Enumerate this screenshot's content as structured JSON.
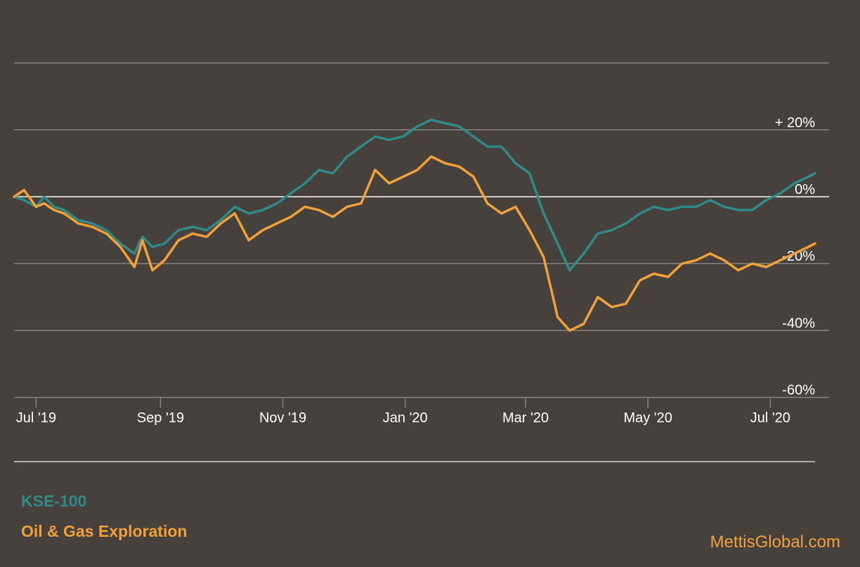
{
  "chart_data": {
    "type": "line",
    "x_axis": {
      "ticks": [
        "Jul '19",
        "Sep '19",
        "Nov '19",
        "Jan '20",
        "Mar '20",
        "May '20",
        "Jul '20"
      ],
      "range": [
        "2019-06-20",
        "2020-07-28"
      ]
    },
    "y_axis": {
      "ticks": [
        "+ 20%",
        "0%",
        "-20%",
        "-40%",
        "-60%"
      ],
      "tick_values": [
        20,
        0,
        -20,
        -40,
        -60
      ],
      "ylim": [
        -60,
        40
      ],
      "position": "right"
    },
    "grid": true,
    "legend": {
      "placement": "bottom-left"
    },
    "series": [
      {
        "name": "KSE-100",
        "color": "#2e8b8a",
        "points": [
          [
            "2019-06-20",
            0
          ],
          [
            "2019-06-25",
            -1
          ],
          [
            "2019-07-01",
            -3
          ],
          [
            "2019-07-05",
            0
          ],
          [
            "2019-07-10",
            -3
          ],
          [
            "2019-07-15",
            -4
          ],
          [
            "2019-07-22",
            -7
          ],
          [
            "2019-07-29",
            -8
          ],
          [
            "2019-08-05",
            -10
          ],
          [
            "2019-08-12",
            -14
          ],
          [
            "2019-08-19",
            -17
          ],
          [
            "2019-08-23",
            -12
          ],
          [
            "2019-08-28",
            -15
          ],
          [
            "2019-09-03",
            -14
          ],
          [
            "2019-09-10",
            -10
          ],
          [
            "2019-09-17",
            -9
          ],
          [
            "2019-09-24",
            -10
          ],
          [
            "2019-10-01",
            -7
          ],
          [
            "2019-10-08",
            -3
          ],
          [
            "2019-10-15",
            -5
          ],
          [
            "2019-10-22",
            -4
          ],
          [
            "2019-10-29",
            -2
          ],
          [
            "2019-11-05",
            1
          ],
          [
            "2019-11-12",
            4
          ],
          [
            "2019-11-19",
            8
          ],
          [
            "2019-11-26",
            7
          ],
          [
            "2019-12-03",
            12
          ],
          [
            "2019-12-10",
            15
          ],
          [
            "2019-12-17",
            18
          ],
          [
            "2019-12-24",
            17
          ],
          [
            "2019-12-31",
            18
          ],
          [
            "2020-01-07",
            21
          ],
          [
            "2020-01-14",
            23
          ],
          [
            "2020-01-21",
            22
          ],
          [
            "2020-01-28",
            21
          ],
          [
            "2020-02-04",
            18
          ],
          [
            "2020-02-11",
            15
          ],
          [
            "2020-02-18",
            15
          ],
          [
            "2020-02-25",
            10
          ],
          [
            "2020-03-03",
            7
          ],
          [
            "2020-03-10",
            -5
          ],
          [
            "2020-03-17",
            -14
          ],
          [
            "2020-03-23",
            -22
          ],
          [
            "2020-03-30",
            -17
          ],
          [
            "2020-04-06",
            -11
          ],
          [
            "2020-04-13",
            -10
          ],
          [
            "2020-04-20",
            -8
          ],
          [
            "2020-04-27",
            -5
          ],
          [
            "2020-05-04",
            -3
          ],
          [
            "2020-05-11",
            -4
          ],
          [
            "2020-05-18",
            -3
          ],
          [
            "2020-05-25",
            -3
          ],
          [
            "2020-06-01",
            -1
          ],
          [
            "2020-06-08",
            -3
          ],
          [
            "2020-06-15",
            -4
          ],
          [
            "2020-06-22",
            -4
          ],
          [
            "2020-06-29",
            -1
          ],
          [
            "2020-07-06",
            1
          ],
          [
            "2020-07-13",
            4
          ],
          [
            "2020-07-20",
            6
          ],
          [
            "2020-07-28",
            7
          ]
        ]
      },
      {
        "name": "Oil & Gas Exploration",
        "color": "#f2a038",
        "points": [
          [
            "2019-06-20",
            0
          ],
          [
            "2019-06-25",
            2
          ],
          [
            "2019-07-01",
            -3
          ],
          [
            "2019-07-05",
            -2
          ],
          [
            "2019-07-10",
            -4
          ],
          [
            "2019-07-15",
            -5
          ],
          [
            "2019-07-22",
            -8
          ],
          [
            "2019-07-29",
            -9
          ],
          [
            "2019-08-05",
            -11
          ],
          [
            "2019-08-12",
            -15
          ],
          [
            "2019-08-19",
            -21
          ],
          [
            "2019-08-23",
            -13
          ],
          [
            "2019-08-28",
            -22
          ],
          [
            "2019-09-03",
            -19
          ],
          [
            "2019-09-10",
            -13
          ],
          [
            "2019-09-17",
            -11
          ],
          [
            "2019-09-24",
            -12
          ],
          [
            "2019-10-01",
            -8
          ],
          [
            "2019-10-08",
            -5
          ],
          [
            "2019-10-15",
            -13
          ],
          [
            "2019-10-22",
            -10
          ],
          [
            "2019-10-29",
            -8
          ],
          [
            "2019-11-05",
            -6
          ],
          [
            "2019-11-12",
            -3
          ],
          [
            "2019-11-19",
            -4
          ],
          [
            "2019-11-26",
            -6
          ],
          [
            "2019-12-03",
            -3
          ],
          [
            "2019-12-10",
            -2
          ],
          [
            "2019-12-17",
            8
          ],
          [
            "2019-12-24",
            4
          ],
          [
            "2019-12-31",
            6
          ],
          [
            "2020-01-07",
            8
          ],
          [
            "2020-01-14",
            12
          ],
          [
            "2020-01-21",
            10
          ],
          [
            "2020-01-28",
            9
          ],
          [
            "2020-02-04",
            6
          ],
          [
            "2020-02-11",
            -2
          ],
          [
            "2020-02-18",
            -5
          ],
          [
            "2020-02-25",
            -3
          ],
          [
            "2020-03-03",
            -10
          ],
          [
            "2020-03-10",
            -18
          ],
          [
            "2020-03-17",
            -36
          ],
          [
            "2020-03-23",
            -40
          ],
          [
            "2020-03-30",
            -38
          ],
          [
            "2020-04-06",
            -30
          ],
          [
            "2020-04-13",
            -33
          ],
          [
            "2020-04-20",
            -32
          ],
          [
            "2020-04-27",
            -25
          ],
          [
            "2020-05-04",
            -23
          ],
          [
            "2020-05-11",
            -24
          ],
          [
            "2020-05-18",
            -20
          ],
          [
            "2020-05-25",
            -19
          ],
          [
            "2020-06-01",
            -17
          ],
          [
            "2020-06-08",
            -19
          ],
          [
            "2020-06-15",
            -22
          ],
          [
            "2020-06-22",
            -20
          ],
          [
            "2020-06-29",
            -21
          ],
          [
            "2020-07-06",
            -19
          ],
          [
            "2020-07-13",
            -17
          ],
          [
            "2020-07-20",
            -15
          ],
          [
            "2020-07-28",
            -14
          ]
        ]
      }
    ]
  },
  "colors": {
    "background": "#46413d",
    "grid": "#8a8580",
    "zero_line": "#cfcac4",
    "tick_text": "#ffffff",
    "brand": "#f2a038"
  },
  "legend": {
    "kse_label": "KSE-100",
    "oil_label": "Oil & Gas Exploration"
  },
  "brand": {
    "text": "MettisGlobal.com"
  }
}
